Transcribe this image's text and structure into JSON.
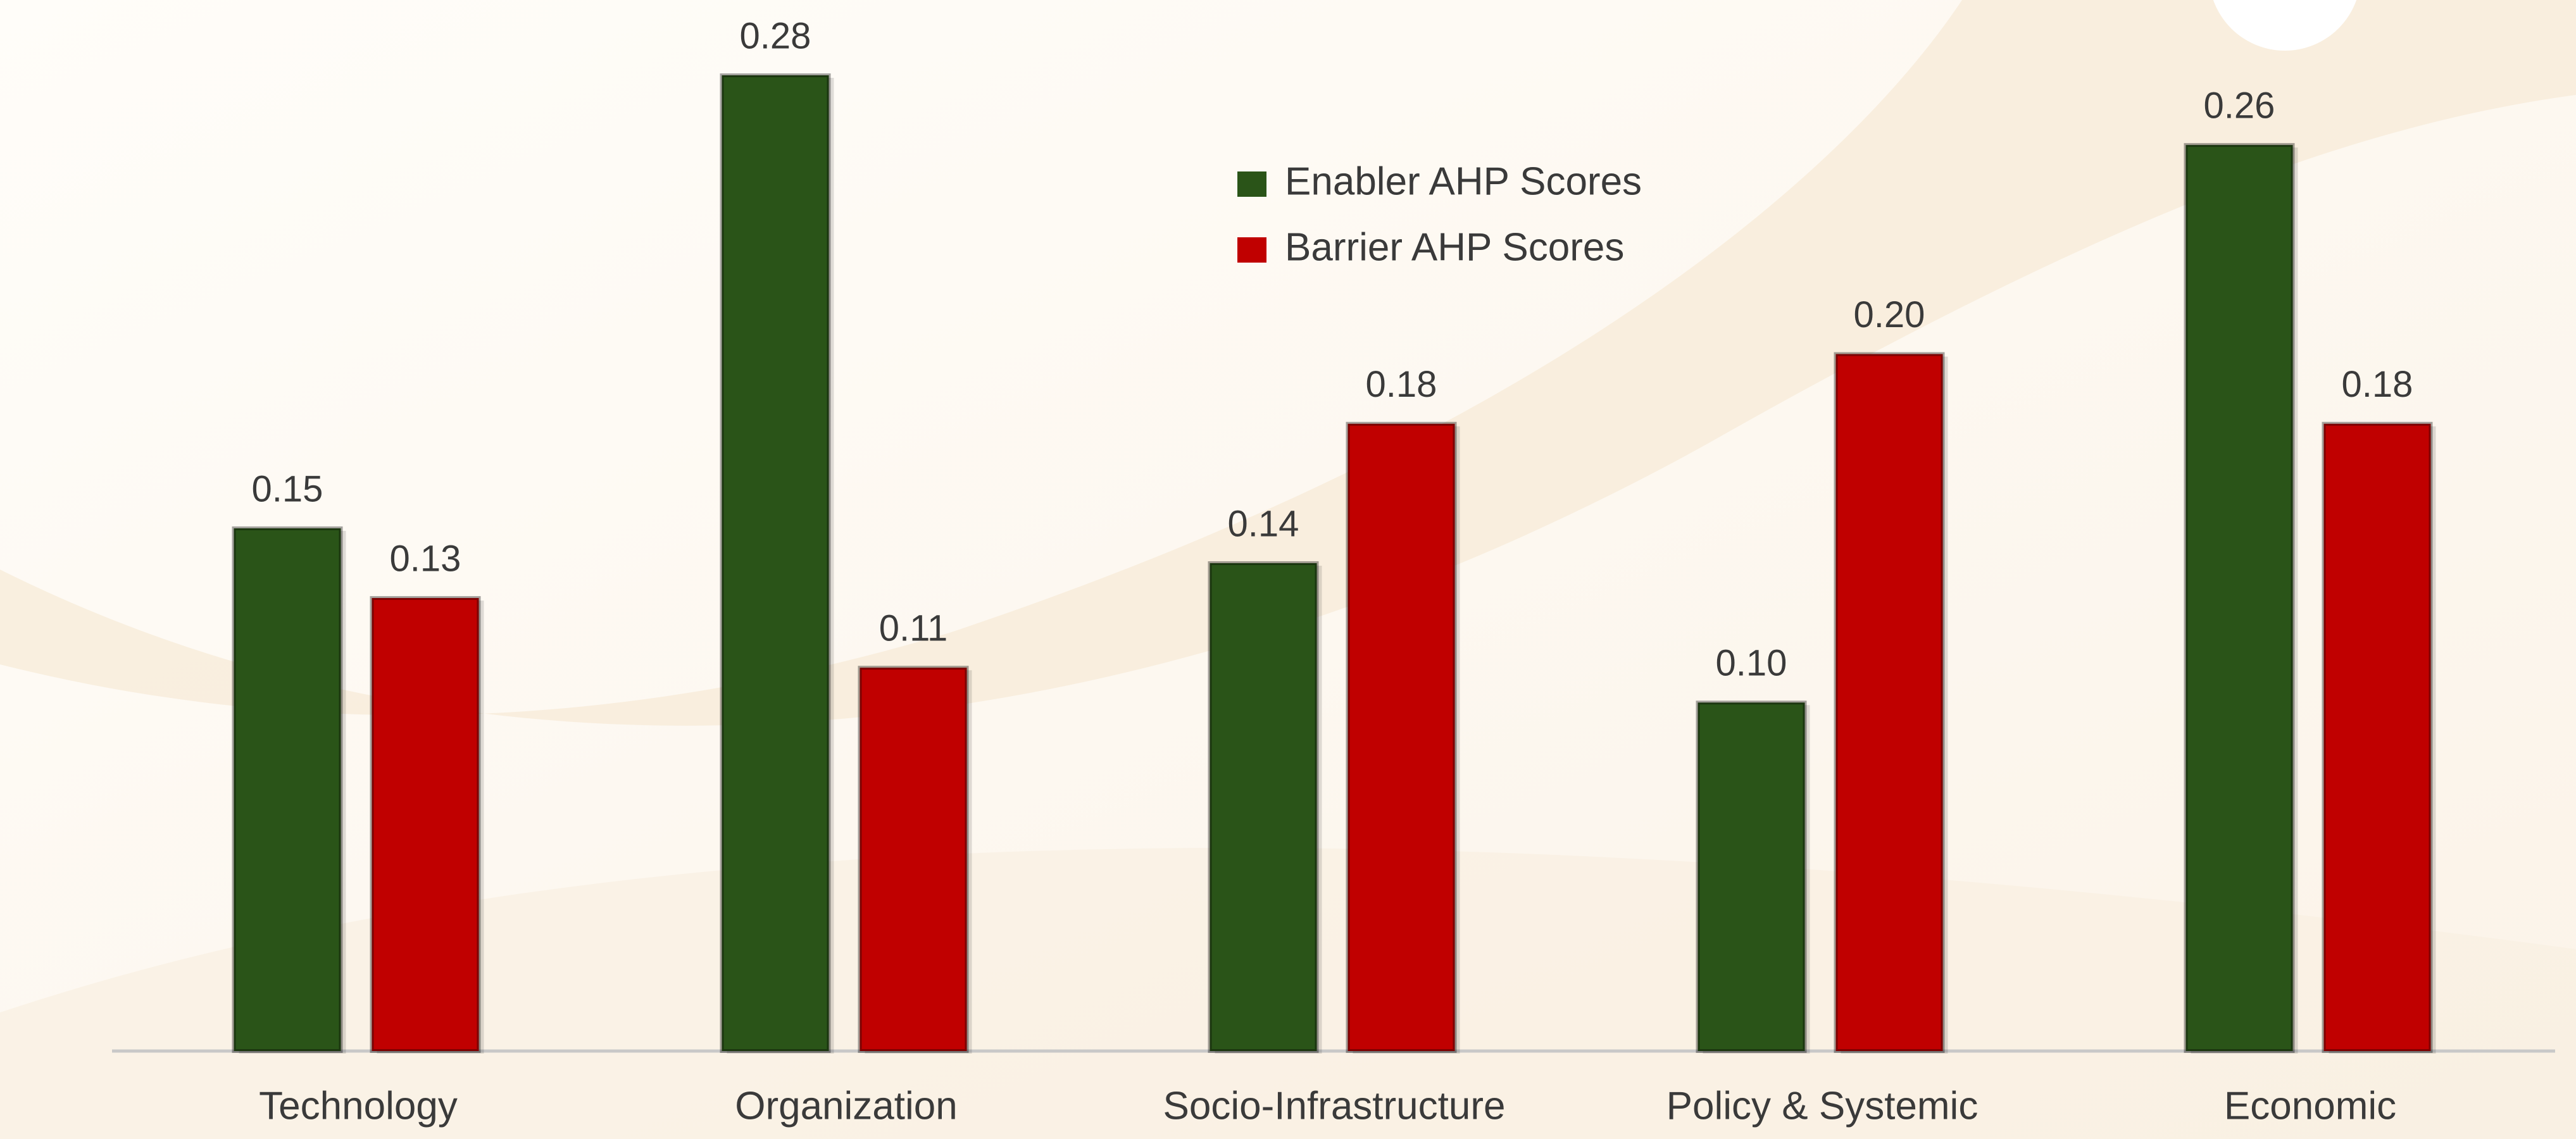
{
  "chart_data": {
    "type": "bar",
    "categories": [
      "Technology",
      "Organization",
      "Socio-Infrastructure",
      "Policy & Systemic",
      "Economic"
    ],
    "series": [
      {
        "name": "Enabler AHP Scores",
        "color": "#2a5418",
        "values": [
          0.15,
          0.28,
          0.14,
          0.1,
          0.26
        ],
        "value_labels": [
          "0.15",
          "0.28",
          "0.14",
          "0.10",
          "0.26"
        ]
      },
      {
        "name": "Barrier AHP Scores",
        "color": "#c00000",
        "values": [
          0.13,
          0.11,
          0.18,
          0.2,
          0.18
        ],
        "value_labels": [
          "0.13",
          "0.11",
          "0.18",
          "0.20",
          "0.18"
        ]
      }
    ],
    "ylim": [
      0,
      0.28
    ],
    "legend": "top-center"
  }
}
